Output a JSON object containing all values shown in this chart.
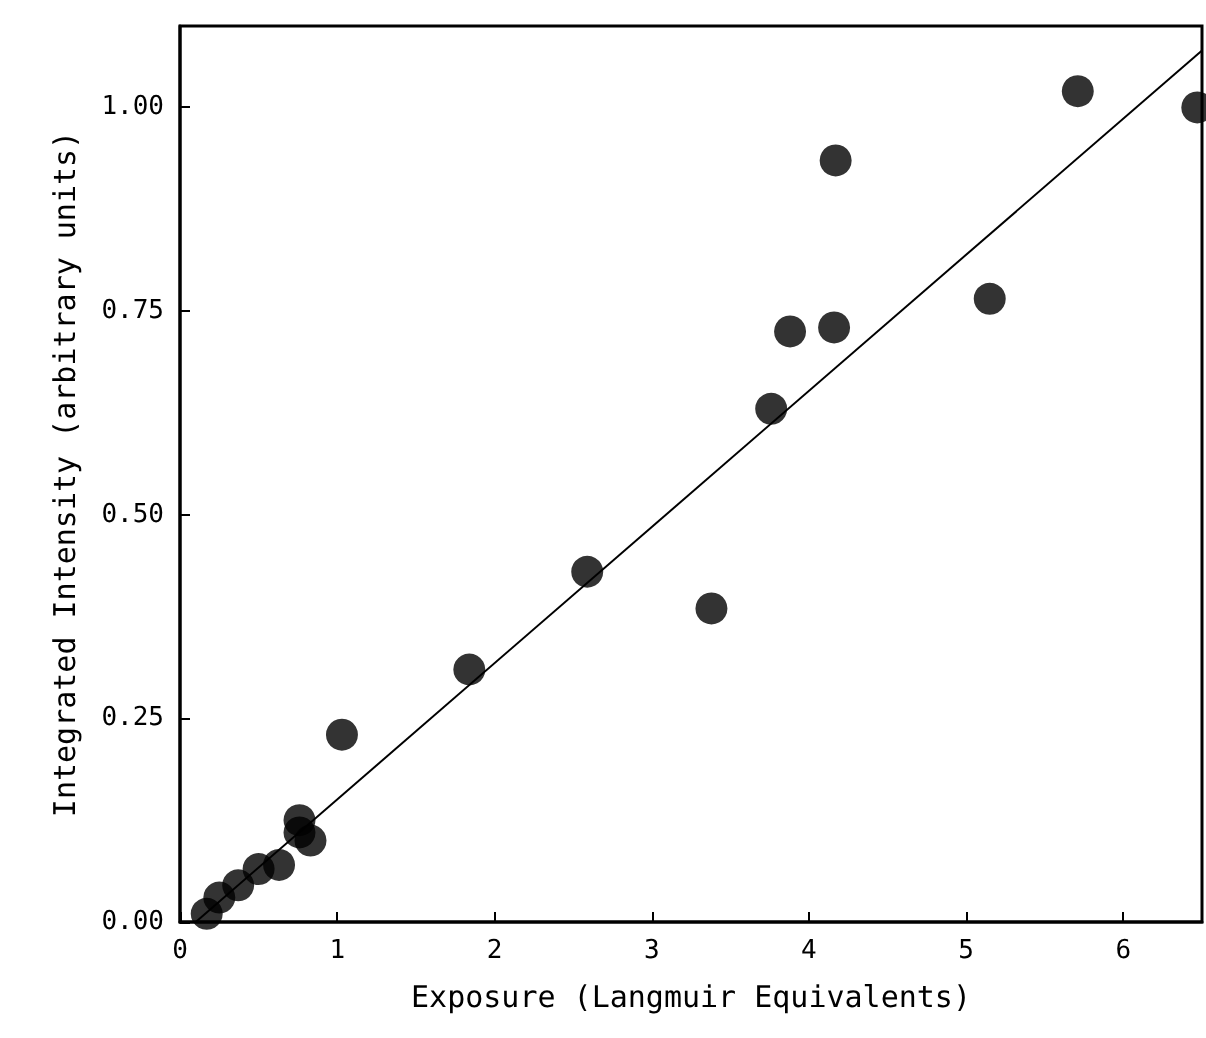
{
  "chart_data": {
    "type": "scatter",
    "xlabel": "Exposure (Langmuir Equivalents)",
    "ylabel": "Integrated Intensity (arbitrary units)",
    "xlim": [
      0,
      6.5
    ],
    "ylim": [
      0,
      1.1
    ],
    "xticks": [
      0,
      1,
      2,
      3,
      4,
      5,
      6
    ],
    "yticks": [
      {
        "value": 0,
        "label": "0.00"
      },
      {
        "value": 0.25,
        "label": "0.25"
      },
      {
        "value": 0.5,
        "label": "0.50"
      },
      {
        "value": 0.75,
        "label": "0.75"
      },
      {
        "value": 1,
        "label": "1.00"
      }
    ],
    "grid": false,
    "series": [
      {
        "marker": "circle",
        "color": "#000000",
        "x": [
          0.17,
          0.25,
          0.37,
          0.5,
          0.63,
          0.76,
          0.76,
          0.83,
          1.03,
          1.84,
          2.59,
          3.38,
          3.76,
          3.88,
          4.16,
          4.17,
          5.15,
          5.71,
          6.47
        ],
        "values": [
          0.01,
          0.03,
          0.045,
          0.065,
          0.07,
          0.125,
          0.11,
          0.1,
          0.23,
          0.31,
          0.43,
          0.385,
          0.63,
          0.725,
          0.73,
          0.935,
          0.765,
          1.02,
          1.0
        ]
      },
      {
        "type": "line",
        "marker": "none",
        "color": "#000000",
        "line_style": "solid",
        "x": [
          0.1,
          6.5
        ],
        "values": [
          0,
          1.07
        ]
      }
    ]
  }
}
